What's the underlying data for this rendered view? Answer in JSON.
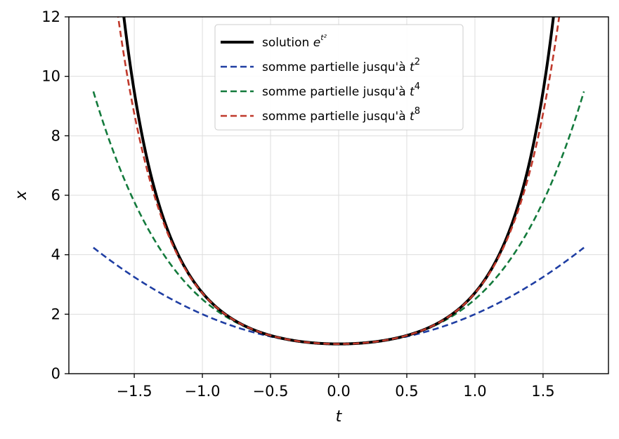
{
  "chart_data": {
    "type": "line",
    "title": "",
    "xlabel": "t",
    "ylabel": "x",
    "xlim": [
      -1.98,
      1.98
    ],
    "ylim": [
      0,
      12
    ],
    "x_domain": [
      -1.8,
      1.8
    ],
    "xticks": [
      -1.5,
      -1.0,
      -0.5,
      0.0,
      0.5,
      1.0,
      1.5
    ],
    "xtick_labels": [
      "−1.5",
      "−1.0",
      "−0.5",
      "0.0",
      "0.5",
      "1.0",
      "1.5"
    ],
    "yticks": [
      0,
      2,
      4,
      6,
      8,
      10,
      12
    ],
    "ytick_labels": [
      "0",
      "2",
      "4",
      "6",
      "8",
      "10",
      "12"
    ],
    "grid": true,
    "legend_position": "top-center",
    "series": [
      {
        "name": "solution e^{t²}",
        "legend_text": "solution ",
        "legend_math": "e",
        "legend_sup": "t²",
        "color": "#000000",
        "style": "solid",
        "max_power": null
      },
      {
        "name": "somme partielle jusqu'à t²",
        "legend_text": "somme partielle jusqu'à ",
        "legend_math": "t",
        "legend_sup": "2",
        "color": "#1f3ea3",
        "style": "dashed",
        "max_power": 2
      },
      {
        "name": "somme partielle jusqu'à t⁴",
        "legend_text": "somme partielle jusqu'à ",
        "legend_math": "t",
        "legend_sup": "4",
        "color": "#137a3c",
        "style": "dashed",
        "max_power": 4
      },
      {
        "name": "somme partielle jusqu'à t⁸",
        "legend_text": "somme partielle jusqu'à ",
        "legend_math": "t",
        "legend_sup": "8",
        "color": "#c0392b",
        "style": "dashed",
        "max_power": 8
      }
    ]
  }
}
